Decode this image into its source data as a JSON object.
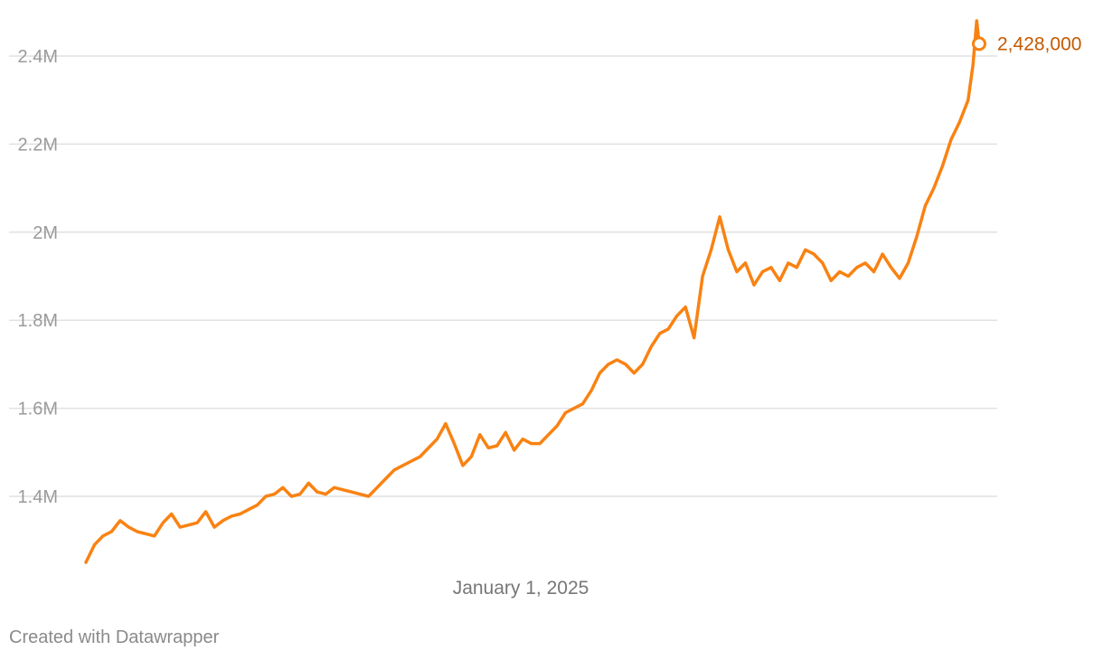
{
  "chart_data": {
    "type": "line",
    "xlabel": "",
    "ylabel": "",
    "x_tick_labels": [
      "January 1, 2025"
    ],
    "y_ticks": [
      {
        "value": 1400000,
        "label": "1.4M"
      },
      {
        "value": 1600000,
        "label": "1.6M"
      },
      {
        "value": 1800000,
        "label": "1.8M"
      },
      {
        "value": 2000000,
        "label": "2M"
      },
      {
        "value": 2200000,
        "label": "2.2M"
      },
      {
        "value": 2400000,
        "label": "2.4M"
      }
    ],
    "ylim": [
      1230000,
      2480000
    ],
    "x_range": [
      "2024-01-01",
      "2025-12-31"
    ],
    "grid": true,
    "series": [
      {
        "color": "#f98212",
        "end_label": "2,428,000",
        "end_label_color": "#c45a00",
        "points": [
          [
            "2024-01-01",
            1250000
          ],
          [
            "2024-01-08",
            1290000
          ],
          [
            "2024-01-15",
            1310000
          ],
          [
            "2024-01-22",
            1320000
          ],
          [
            "2024-01-29",
            1345000
          ],
          [
            "2024-02-05",
            1330000
          ],
          [
            "2024-02-12",
            1320000
          ],
          [
            "2024-02-19",
            1315000
          ],
          [
            "2024-02-26",
            1310000
          ],
          [
            "2024-03-04",
            1340000
          ],
          [
            "2024-03-11",
            1360000
          ],
          [
            "2024-03-18",
            1330000
          ],
          [
            "2024-03-25",
            1335000
          ],
          [
            "2024-04-01",
            1340000
          ],
          [
            "2024-04-08",
            1365000
          ],
          [
            "2024-04-15",
            1330000
          ],
          [
            "2024-04-22",
            1345000
          ],
          [
            "2024-04-29",
            1355000
          ],
          [
            "2024-05-06",
            1360000
          ],
          [
            "2024-05-13",
            1370000
          ],
          [
            "2024-05-20",
            1380000
          ],
          [
            "2024-05-27",
            1400000
          ],
          [
            "2024-06-03",
            1405000
          ],
          [
            "2024-06-10",
            1420000
          ],
          [
            "2024-06-17",
            1400000
          ],
          [
            "2024-06-24",
            1405000
          ],
          [
            "2024-07-01",
            1430000
          ],
          [
            "2024-07-08",
            1410000
          ],
          [
            "2024-07-15",
            1405000
          ],
          [
            "2024-07-22",
            1420000
          ],
          [
            "2024-07-29",
            1415000
          ],
          [
            "2024-08-05",
            1410000
          ],
          [
            "2024-08-12",
            1405000
          ],
          [
            "2024-08-19",
            1400000
          ],
          [
            "2024-08-26",
            1420000
          ],
          [
            "2024-09-02",
            1440000
          ],
          [
            "2024-09-09",
            1460000
          ],
          [
            "2024-09-16",
            1470000
          ],
          [
            "2024-09-23",
            1480000
          ],
          [
            "2024-09-30",
            1490000
          ],
          [
            "2024-10-07",
            1510000
          ],
          [
            "2024-10-14",
            1530000
          ],
          [
            "2024-10-21",
            1565000
          ],
          [
            "2024-10-28",
            1520000
          ],
          [
            "2024-11-04",
            1470000
          ],
          [
            "2024-11-11",
            1490000
          ],
          [
            "2024-11-18",
            1540000
          ],
          [
            "2024-11-25",
            1510000
          ],
          [
            "2024-12-02",
            1515000
          ],
          [
            "2024-12-09",
            1545000
          ],
          [
            "2024-12-16",
            1505000
          ],
          [
            "2024-12-23",
            1530000
          ],
          [
            "2024-12-30",
            1520000
          ],
          [
            "2025-01-06",
            1520000
          ],
          [
            "2025-01-13",
            1540000
          ],
          [
            "2025-01-20",
            1560000
          ],
          [
            "2025-01-27",
            1590000
          ],
          [
            "2025-02-03",
            1600000
          ],
          [
            "2025-02-10",
            1610000
          ],
          [
            "2025-02-17",
            1640000
          ],
          [
            "2025-02-24",
            1680000
          ],
          [
            "2025-03-03",
            1700000
          ],
          [
            "2025-03-10",
            1710000
          ],
          [
            "2025-03-17",
            1700000
          ],
          [
            "2025-03-24",
            1680000
          ],
          [
            "2025-03-31",
            1700000
          ],
          [
            "2025-04-07",
            1740000
          ],
          [
            "2025-04-14",
            1770000
          ],
          [
            "2025-04-21",
            1780000
          ],
          [
            "2025-04-28",
            1810000
          ],
          [
            "2025-05-05",
            1830000
          ],
          [
            "2025-05-12",
            1760000
          ],
          [
            "2025-05-19",
            1900000
          ],
          [
            "2025-05-26",
            1960000
          ],
          [
            "2025-06-02",
            2035000
          ],
          [
            "2025-06-09",
            1960000
          ],
          [
            "2025-06-16",
            1910000
          ],
          [
            "2025-06-23",
            1930000
          ],
          [
            "2025-06-30",
            1880000
          ],
          [
            "2025-07-07",
            1910000
          ],
          [
            "2025-07-14",
            1920000
          ],
          [
            "2025-07-21",
            1890000
          ],
          [
            "2025-07-28",
            1930000
          ],
          [
            "2025-08-04",
            1920000
          ],
          [
            "2025-08-11",
            1960000
          ],
          [
            "2025-08-18",
            1950000
          ],
          [
            "2025-08-25",
            1930000
          ],
          [
            "2025-09-01",
            1890000
          ],
          [
            "2025-09-08",
            1910000
          ],
          [
            "2025-09-15",
            1900000
          ],
          [
            "2025-09-22",
            1920000
          ],
          [
            "2025-09-29",
            1930000
          ],
          [
            "2025-10-06",
            1910000
          ],
          [
            "2025-10-13",
            1950000
          ],
          [
            "2025-10-20",
            1920000
          ],
          [
            "2025-10-27",
            1895000
          ],
          [
            "2025-11-03",
            1930000
          ],
          [
            "2025-11-10",
            1990000
          ],
          [
            "2025-11-17",
            2060000
          ],
          [
            "2025-11-24",
            2100000
          ],
          [
            "2025-12-01",
            2150000
          ],
          [
            "2025-12-08",
            2210000
          ],
          [
            "2025-12-15",
            2250000
          ],
          [
            "2025-12-22",
            2300000
          ],
          [
            "2025-12-26",
            2380000
          ],
          [
            "2025-12-29",
            2480000
          ],
          [
            "2025-12-31",
            2428000
          ]
        ]
      }
    ]
  },
  "footer": {
    "credit": "Created with Datawrapper"
  }
}
